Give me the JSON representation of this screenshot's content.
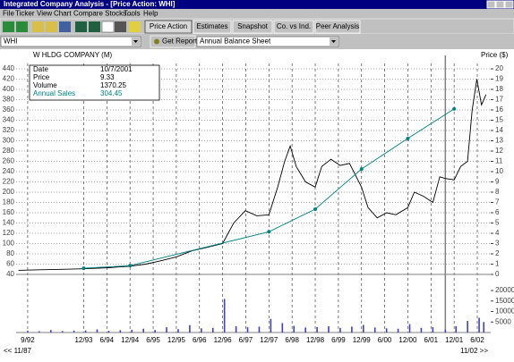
{
  "window": {
    "title": "Integrated Company Analysis - [Price Action:  WHI]"
  },
  "menu": [
    "File",
    "Ticker",
    "View",
    "Chart",
    "Compare Stocks...",
    "Tools",
    "Help"
  ],
  "toolbar": {
    "buttons": [
      "Price Action",
      "Estimates",
      "Snapshot",
      "Co. vs Ind.",
      "Peer Analysis"
    ]
  },
  "report_bar": {
    "ticker": "WHI",
    "button": "Get Report",
    "report": "Annual Balance Sheet"
  },
  "info": {
    "date_label": "Date",
    "date": "10/7/2001",
    "price": 9.33,
    "volume": 1370.25,
    "sales": 304.45
  },
  "chart_data": [
    {
      "type": "line",
      "title": "W HLDG COMPANY (M)",
      "y2_label": "Price ($)",
      "range_start": "<< 11/87",
      "range_end": "11/02 >>",
      "xlim": [
        1992.5,
        2002.75
      ],
      "xticks": [
        {
          "value": 1992.75,
          "label": "9/92"
        },
        {
          "value": 1993.96,
          "label": "12/93"
        },
        {
          "value": 1994.46,
          "label": "6/94"
        },
        {
          "value": 1994.96,
          "label": "12/94"
        },
        {
          "value": 1995.46,
          "label": "6/95"
        },
        {
          "value": 1995.96,
          "label": "12/95"
        },
        {
          "value": 1996.46,
          "label": "6/96"
        },
        {
          "value": 1996.96,
          "label": "12/96"
        },
        {
          "value": 1997.46,
          "label": "6/97"
        },
        {
          "value": 1997.96,
          "label": "12/97"
        },
        {
          "value": 1998.46,
          "label": "6/98"
        },
        {
          "value": 1998.96,
          "label": "12/98"
        },
        {
          "value": 1999.46,
          "label": "6/99"
        },
        {
          "value": 1999.96,
          "label": "12/99"
        },
        {
          "value": 2000.46,
          "label": "6/00"
        },
        {
          "value": 2000.96,
          "label": "12/00"
        },
        {
          "value": 2001.46,
          "label": "6/01"
        },
        {
          "value": 2001.96,
          "label": "12/01"
        },
        {
          "value": 2002.46,
          "label": "6/02"
        }
      ],
      "ylim": [
        40,
        440
      ],
      "yticks": [
        40,
        60,
        80,
        100,
        120,
        140,
        160,
        180,
        200,
        220,
        240,
        260,
        280,
        300,
        320,
        340,
        360,
        380,
        400,
        420,
        440
      ],
      "y2lim": [
        0,
        20
      ],
      "y2ticks": [
        0,
        1,
        2,
        3,
        4,
        5,
        6,
        7,
        8,
        9,
        10,
        11,
        12,
        13,
        14,
        15,
        16,
        17,
        18,
        19,
        20
      ],
      "grid": true,
      "cursor_x": 2001.77,
      "series": [
        {
          "name": "Price",
          "color": "#000000",
          "axis": "y2",
          "x": [
            1992.55,
            1993.0,
            1993.5,
            1993.96,
            1994.5,
            1994.96,
            1995.3,
            1995.6,
            1995.96,
            1996.3,
            1996.6,
            1996.96,
            1997.2,
            1997.45,
            1997.7,
            1997.96,
            1998.15,
            1998.3,
            1998.42,
            1998.55,
            1998.75,
            1998.96,
            1999.1,
            1999.3,
            1999.5,
            1999.7,
            1999.96,
            2000.1,
            2000.3,
            2000.5,
            2000.7,
            2000.96,
            2001.1,
            2001.3,
            2001.5,
            2001.65,
            2001.77,
            2001.96,
            2002.1,
            2002.25,
            2002.35,
            2002.45,
            2002.55,
            2002.65
          ],
          "values": [
            0.4,
            0.45,
            0.5,
            0.55,
            0.65,
            0.8,
            1.0,
            1.3,
            1.7,
            2.3,
            2.6,
            3.0,
            5.0,
            6.2,
            5.7,
            5.8,
            8.5,
            11.0,
            12.5,
            10.5,
            9.0,
            8.5,
            10.5,
            11.2,
            10.6,
            10.8,
            8.5,
            6.5,
            5.5,
            6.0,
            5.8,
            6.5,
            8.0,
            7.6,
            7.0,
            9.5,
            9.33,
            9.2,
            10.5,
            11.0,
            16.0,
            19.0,
            16.5,
            17.5
          ]
        },
        {
          "name": "Annual Sales",
          "color": "#008080",
          "axis": "y",
          "x": [
            1993.96,
            1994.96,
            1997.96,
            1998.96,
            1999.96,
            2000.96,
            2001.96
          ],
          "values": [
            52,
            57,
            123,
            167,
            245,
            304.45,
            362
          ]
        }
      ]
    },
    {
      "type": "bar",
      "ylim": [
        0,
        20000
      ],
      "yticks": [
        5000,
        10000,
        15000,
        20000
      ],
      "series": [
        {
          "name": "Volume",
          "color": "#4040c0",
          "x": [
            1992.75,
            1993.0,
            1993.25,
            1993.5,
            1993.75,
            1994.0,
            1994.25,
            1994.5,
            1994.75,
            1995.0,
            1995.25,
            1995.5,
            1995.75,
            1996.0,
            1996.25,
            1996.5,
            1996.75,
            1997.0,
            1997.25,
            1997.5,
            1997.75,
            1998.0,
            1998.25,
            1998.5,
            1998.75,
            1999.0,
            1999.25,
            1999.5,
            1999.75,
            2000.0,
            2000.25,
            2000.5,
            2000.75,
            2001.0,
            2001.25,
            2001.5,
            2001.77,
            2002.0,
            2002.25,
            2002.5,
            2002.6
          ],
          "values": [
            800,
            600,
            1200,
            700,
            900,
            1000,
            1500,
            800,
            1100,
            1300,
            1800,
            1200,
            2500,
            1600,
            3500,
            2000,
            2200,
            16000,
            3000,
            2500,
            2800,
            6500,
            4500,
            3200,
            2400,
            2600,
            3000,
            2200,
            2800,
            3600,
            2400,
            2000,
            1800,
            4000,
            2200,
            2600,
            1370.25,
            3000,
            5500,
            7000,
            5000
          ]
        }
      ]
    }
  ]
}
